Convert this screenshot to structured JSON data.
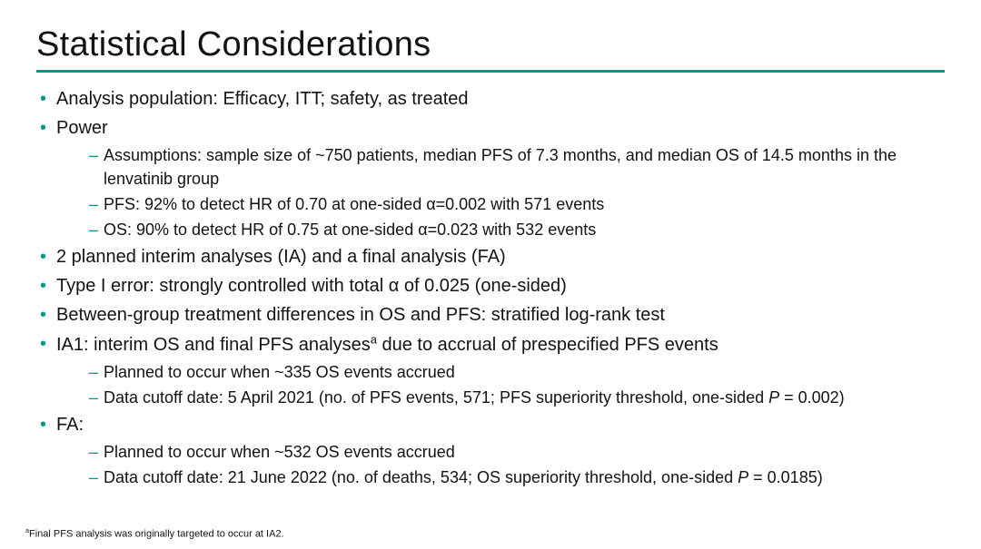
{
  "colors": {
    "accent": "#009688",
    "text": "#131313",
    "background": "#ffffff"
  },
  "typography": {
    "title_fontsize": 38,
    "bullet_fontsize": 20,
    "sub_fontsize": 18,
    "footnote_fontsize": 11,
    "font_family": "Arial"
  },
  "title": "Statistical Considerations",
  "bullets": [
    {
      "text": "Analysis population: Efficacy, ITT; safety, as treated"
    },
    {
      "text": "Power",
      "sub": [
        "Assumptions: sample size of ~750 patients, median PFS of 7.3 months, and median OS of 14.5 months in the lenvatinib group",
        "PFS: 92% to detect HR of 0.70 at one-sided α=0.002 with 571 events",
        "OS: 90% to detect HR of 0.75 at one-sided α=0.023 with 532 events"
      ]
    },
    {
      "text": "2 planned interim analyses (IA) and a final analysis (FA)"
    },
    {
      "text": "Type I error: strongly controlled with total α of 0.025 (one-sided)"
    },
    {
      "text": "Between-group treatment differences in OS and PFS: stratified log-rank test"
    },
    {
      "text_html": "IA1: interim OS and final PFS analyses<span class=\"sup\">a</span> due to accrual of prespecified PFS events",
      "sub_html": [
        "Planned to occur when ~335 OS events accrued",
        "Data cutoff date: 5 April 2021 (no. of PFS events, 571; PFS superiority threshold, one-sided <span class=\"ital\">P</span> = 0.002)"
      ]
    },
    {
      "text": "FA:",
      "sub_html": [
        "Planned to occur when ~532 OS events accrued",
        "Data cutoff date: 21 June 2022 (no. of deaths, 534; OS superiority threshold, one-sided <span class=\"ital\">P</span> = 0.0185)"
      ]
    }
  ],
  "footnote_html": "<span class=\"sup\">a</span>Final PFS analysis was originally targeted to occur at IA2."
}
